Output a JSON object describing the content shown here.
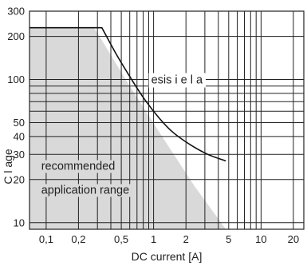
{
  "chart_data": {
    "type": "line",
    "title": "",
    "xlabel": "DC current [A]",
    "ylabel": "C    l age",
    "x_scale": "log",
    "y_scale": "log",
    "xlim": [
      0.07,
      25
    ],
    "ylim": [
      9,
      300
    ],
    "grid": true,
    "x_ticks": [
      {
        "value": 0.1,
        "label": "0,1"
      },
      {
        "value": 0.2,
        "label": "0,2"
      },
      {
        "value": 0.5,
        "label": "0,5"
      },
      {
        "value": 1,
        "label": "1"
      },
      {
        "value": 2,
        "label": "2"
      },
      {
        "value": 5,
        "label": "5"
      },
      {
        "value": 10,
        "label": "10"
      },
      {
        "value": 20,
        "label": "20"
      }
    ],
    "x_minor_grid": [
      0.3,
      0.4,
      0.6,
      0.7,
      0.8,
      0.9,
      3,
      4,
      6,
      7,
      8,
      9
    ],
    "y_ticks": [
      {
        "value": 10,
        "label": "10"
      },
      {
        "value": 20,
        "label": "20"
      },
      {
        "value": 30,
        "label": "30"
      },
      {
        "value": 40,
        "label": "40"
      },
      {
        "value": 50,
        "label": "50"
      },
      {
        "value": 100,
        "label": "100"
      },
      {
        "value": 200,
        "label": "200"
      },
      {
        "value": 300,
        "label": "300"
      }
    ],
    "y_minor_grid": [
      60,
      70,
      80,
      90
    ],
    "series": [
      {
        "name": "",
        "color": "#111111",
        "points": [
          [
            0.07,
            230
          ],
          [
            0.33,
            230
          ],
          [
            0.45,
            150
          ],
          [
            0.6,
            105
          ],
          [
            0.8,
            75
          ],
          [
            1.1,
            55
          ],
          [
            1.5,
            43
          ],
          [
            2.2,
            35
          ],
          [
            3.2,
            30
          ],
          [
            4.7,
            27
          ]
        ]
      }
    ],
    "areas": [
      {
        "name": "recommended application range",
        "color": "#d9d9d9",
        "points": [
          [
            0.07,
            230
          ],
          [
            0.28,
            230
          ],
          [
            0.6,
            90
          ],
          [
            1.2,
            40
          ],
          [
            2.4,
            18
          ],
          [
            4.7,
            9
          ],
          [
            0.07,
            9
          ]
        ]
      }
    ],
    "annotations": [
      {
        "text": "esis i e l a",
        "x": 0.95,
        "y": 100
      },
      {
        "text": "recommended",
        "x": 0.09,
        "y": 25
      },
      {
        "text": "application range",
        "x": 0.09,
        "y": 17
      }
    ]
  }
}
